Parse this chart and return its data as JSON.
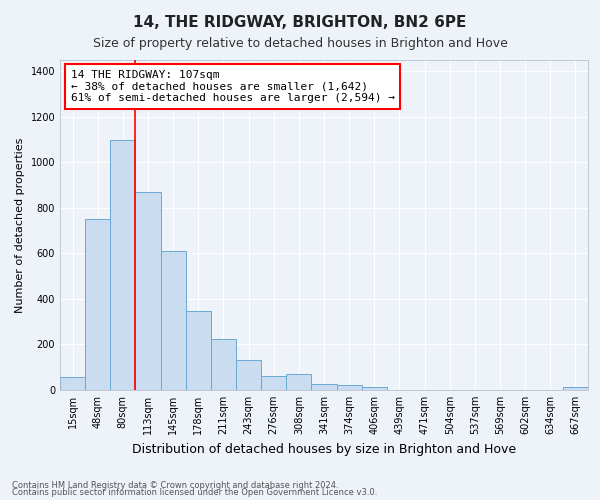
{
  "title": "14, THE RIDGWAY, BRIGHTON, BN2 6PE",
  "subtitle": "Size of property relative to detached houses in Brighton and Hove",
  "xlabel": "Distribution of detached houses by size in Brighton and Hove",
  "ylabel": "Number of detached properties",
  "footnote1": "Contains HM Land Registry data © Crown copyright and database right 2024.",
  "footnote2": "Contains public sector information licensed under the Open Government Licence v3.0.",
  "annotation_line1": "14 THE RIDGWAY: 107sqm",
  "annotation_line2": "← 38% of detached houses are smaller (1,642)",
  "annotation_line3": "61% of semi-detached houses are larger (2,594) →",
  "bar_labels": [
    "15sqm",
    "48sqm",
    "80sqm",
    "113sqm",
    "145sqm",
    "178sqm",
    "211sqm",
    "243sqm",
    "276sqm",
    "308sqm",
    "341sqm",
    "374sqm",
    "406sqm",
    "439sqm",
    "471sqm",
    "504sqm",
    "537sqm",
    "569sqm",
    "602sqm",
    "634sqm",
    "667sqm"
  ],
  "bar_values": [
    55,
    750,
    1100,
    870,
    610,
    345,
    225,
    130,
    60,
    70,
    25,
    20,
    15,
    0,
    0,
    0,
    0,
    0,
    0,
    0,
    12
  ],
  "bar_color": "#c9dcf0",
  "bar_edge_color": "#6aaad4",
  "red_line_x": 3.0,
  "ylim": [
    0,
    1450
  ],
  "yticks": [
    0,
    200,
    400,
    600,
    800,
    1000,
    1200,
    1400
  ],
  "bg_color": "#eef2f9",
  "grid_color": "#ffffff",
  "title_fontsize": 11,
  "subtitle_fontsize": 9,
  "xlabel_fontsize": 9,
  "ylabel_fontsize": 8,
  "tick_fontsize": 7,
  "annotation_fontsize": 8,
  "footnote_fontsize": 6
}
